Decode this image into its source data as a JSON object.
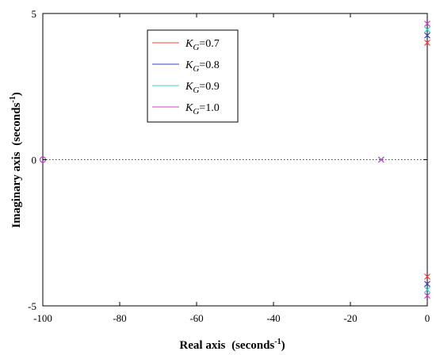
{
  "chart_data": {
    "type": "scatter",
    "subtype": "pole-zero map",
    "xlabel": "Real axis",
    "ylabel": "Imaginary axis",
    "xlabel_unit": "(seconds",
    "ylabel_unit": "(seconds",
    "unit_exponent": "-1",
    "unit_close": ")",
    "xlim": [
      -100,
      0
    ],
    "ylim": [
      -5,
      5
    ],
    "xticks": [
      -100,
      -80,
      -60,
      -40,
      -20,
      0
    ],
    "yticks": [
      -5,
      0,
      5
    ],
    "xtick_labels": [
      "-100",
      "-80",
      "-60",
      "-40",
      "-20",
      "0"
    ],
    "ytick_labels": [
      "-5",
      "0",
      "5"
    ],
    "grid": false,
    "zero_line": "dotted horizontal at imaginary = 0",
    "legend_position": "upper-center",
    "legend_symbol": "K",
    "legend_subscript": "G",
    "series": [
      {
        "name": "=0.7",
        "color": "#ff4040",
        "poles": [
          [
            -12,
            0
          ],
          [
            0,
            4.0
          ],
          [
            0,
            -4.0
          ]
        ],
        "zeros": [
          [
            -100,
            0
          ]
        ]
      },
      {
        "name": "=0.8",
        "color": "#4040c0",
        "poles": [
          [
            -12,
            0
          ],
          [
            0,
            4.25
          ],
          [
            0,
            -4.25
          ]
        ],
        "zeros": [
          [
            -100,
            0
          ]
        ]
      },
      {
        "name": "=0.9",
        "color": "#40d0d0",
        "poles": [
          [
            -12,
            0
          ],
          [
            0,
            4.45
          ],
          [
            0,
            -4.45
          ]
        ],
        "zeros": [
          [
            -100,
            0
          ]
        ]
      },
      {
        "name": "=1.0",
        "color": "#d040d0",
        "poles": [
          [
            -12,
            0
          ],
          [
            0,
            4.65
          ],
          [
            0,
            -4.65
          ]
        ],
        "zeros": [
          [
            -100,
            0
          ]
        ]
      }
    ]
  }
}
